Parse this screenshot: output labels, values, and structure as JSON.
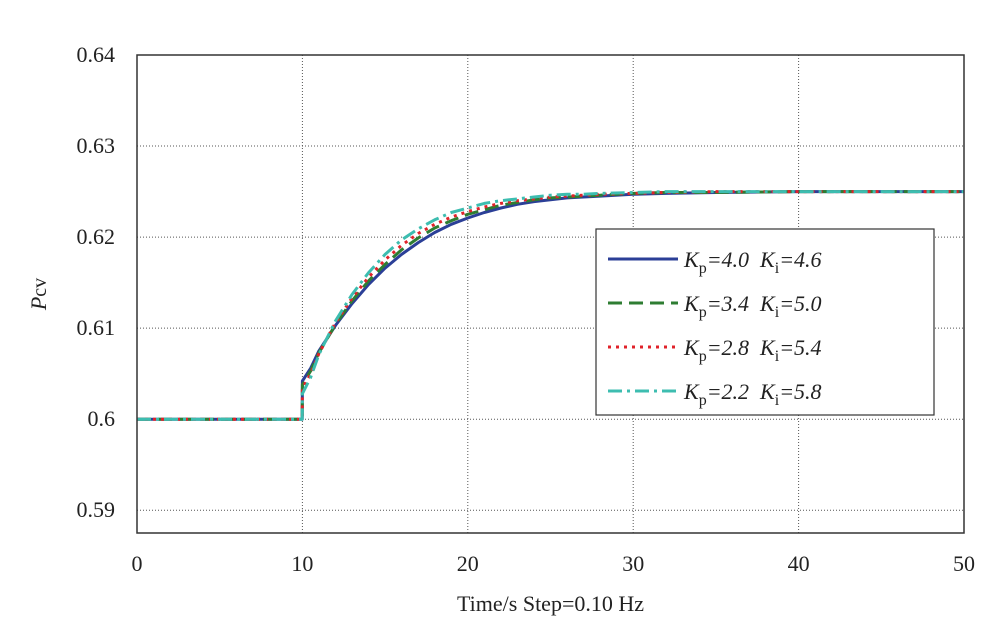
{
  "chart_data": {
    "type": "line",
    "title": "",
    "xlabel": "Time/s  Step=0.10 Hz",
    "ylabel_main": "P",
    "ylabel_sub": "cv",
    "xlim": [
      0,
      50
    ],
    "ylim": [
      0.5875,
      0.64
    ],
    "xticks": [
      0,
      10,
      20,
      30,
      40,
      50
    ],
    "xtick_labels": [
      "0",
      "10",
      "20",
      "30",
      "40",
      "50"
    ],
    "yticks": [
      0.59,
      0.6,
      0.61,
      0.62,
      0.63,
      0.64
    ],
    "ytick_labels": [
      "0.59",
      "0.6",
      "0.61",
      "0.62",
      "0.63",
      "0.64"
    ],
    "grid": true,
    "legend_position": "right",
    "x": [
      0,
      9.99,
      10.0,
      10.5,
      11,
      12,
      13,
      14,
      15,
      16,
      17,
      18,
      19,
      20,
      21,
      22,
      23,
      24,
      25,
      26,
      27,
      28,
      30,
      32,
      35,
      40,
      45,
      50
    ],
    "series": [
      {
        "name": "Kp=4.0 Ki=4.6",
        "legend": {
          "k1": "K",
          "s1": "p",
          "v1": "=4.0",
          "k2": "K",
          "s2": "i",
          "v2": "=4.6"
        },
        "color": "#2b3f97",
        "dash": "",
        "values": [
          0.6,
          0.6,
          0.6042,
          0.6056,
          0.6075,
          0.6103,
          0.6127,
          0.6148,
          0.6166,
          0.6181,
          0.6194,
          0.6205,
          0.6214,
          0.6221,
          0.6227,
          0.6232,
          0.6236,
          0.6239,
          0.6241,
          0.6243,
          0.6244,
          0.6245,
          0.6247,
          0.6248,
          0.6249,
          0.625,
          0.625,
          0.625
        ]
      },
      {
        "name": "Kp=3.4 Ki=5.0",
        "legend": {
          "k1": "K",
          "s1": "p",
          "v1": "=3.4",
          "k2": "K",
          "s2": "i",
          "v2": "=5.0"
        },
        "color": "#2e7d32",
        "dash": "14,7",
        "values": [
          0.6,
          0.6,
          0.6038,
          0.6053,
          0.6073,
          0.6104,
          0.613,
          0.6152,
          0.617,
          0.6186,
          0.6199,
          0.621,
          0.6218,
          0.6225,
          0.623,
          0.6235,
          0.6238,
          0.6241,
          0.6243,
          0.6244,
          0.6245,
          0.6246,
          0.6248,
          0.6249,
          0.6249,
          0.625,
          0.625,
          0.625
        ]
      },
      {
        "name": "Kp=2.8 Ki=5.4",
        "legend": {
          "k1": "K",
          "s1": "p",
          "v1": "=2.8",
          "k2": "K",
          "s2": "i",
          "v2": "=5.4"
        },
        "color": "#e0222a",
        "dash": "3,5",
        "values": [
          0.6,
          0.6,
          0.6034,
          0.605,
          0.6072,
          0.6106,
          0.6133,
          0.6156,
          0.6175,
          0.6191,
          0.6204,
          0.6214,
          0.6222,
          0.6228,
          0.6233,
          0.6237,
          0.624,
          0.6242,
          0.6244,
          0.6245,
          0.6246,
          0.6247,
          0.6248,
          0.6249,
          0.625,
          0.625,
          0.625,
          0.625
        ]
      },
      {
        "name": "Kp=2.2 Ki=5.8",
        "legend": {
          "k1": "K",
          "s1": "p",
          "v1": "=2.2",
          "k2": "K",
          "s2": "i",
          "v2": "=5.8"
        },
        "color": "#3dbdb0",
        "dash": "14,5,3,5",
        "values": [
          0.6,
          0.6,
          0.6028,
          0.6046,
          0.6071,
          0.6108,
          0.6137,
          0.6161,
          0.6181,
          0.6197,
          0.6209,
          0.6219,
          0.6227,
          0.6232,
          0.6237,
          0.624,
          0.6242,
          0.6244,
          0.6246,
          0.6247,
          0.6247,
          0.6248,
          0.6249,
          0.625,
          0.625,
          0.625,
          0.625,
          0.625
        ]
      }
    ]
  }
}
